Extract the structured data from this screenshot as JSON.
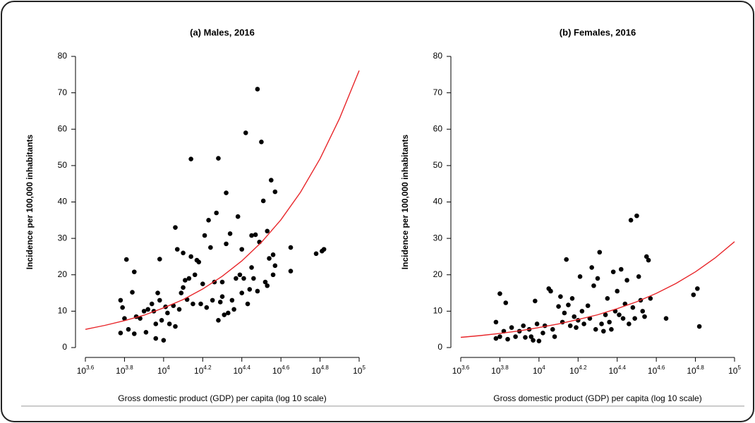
{
  "chart_data": [
    {
      "type": "scatter",
      "title": "(a) Males, 2016",
      "x_label": "Gross domestic product (GDP) per capita (log 10 scale)",
      "y_label": "Incidence per 100,000 inhabitants",
      "xlim": [
        3.6,
        5.0
      ],
      "ylim": [
        0,
        80
      ],
      "xticks": [
        {
          "value": 3.6,
          "label": "10^3.6"
        },
        {
          "value": 3.8,
          "label": "10^3.8"
        },
        {
          "value": 4.0,
          "label": "10^4"
        },
        {
          "value": 4.2,
          "label": "10^4.2"
        },
        {
          "value": 4.4,
          "label": "10^4.4"
        },
        {
          "value": 4.6,
          "label": "10^4.6"
        },
        {
          "value": 4.8,
          "label": "10^4.8"
        },
        {
          "value": 5.0,
          "label": "10^5"
        }
      ],
      "yticks": [
        0,
        10,
        20,
        30,
        40,
        50,
        60,
        70,
        80
      ],
      "series": [
        {
          "kind": "points",
          "color": "#000000",
          "x": [
            3.78,
            3.78,
            3.79,
            3.8,
            3.81,
            3.82,
            3.84,
            3.85,
            3.85,
            3.86,
            3.88,
            3.9,
            3.91,
            3.92,
            3.94,
            3.95,
            3.96,
            3.96,
            3.97,
            3.98,
            3.98,
            3.99,
            4.0,
            4.01,
            4.02,
            4.03,
            4.05,
            4.06,
            4.06,
            4.07,
            4.08,
            4.09,
            4.1,
            4.1,
            4.11,
            4.12,
            4.13,
            4.14,
            4.14,
            4.15,
            4.16,
            4.17,
            4.18,
            4.19,
            4.2,
            4.21,
            4.22,
            4.23,
            4.24,
            4.25,
            4.26,
            4.27,
            4.28,
            4.28,
            4.29,
            4.3,
            4.3,
            4.31,
            4.32,
            4.32,
            4.33,
            4.34,
            4.35,
            4.36,
            4.37,
            4.38,
            4.39,
            4.4,
            4.4,
            4.41,
            4.42,
            4.43,
            4.44,
            4.45,
            4.45,
            4.46,
            4.47,
            4.48,
            4.48,
            4.49,
            4.5,
            4.51,
            4.52,
            4.53,
            4.53,
            4.54,
            4.55,
            4.56,
            4.56,
            4.57,
            4.57,
            4.65,
            4.65,
            4.78,
            4.81,
            4.82
          ],
          "values": [
            4,
            13,
            11,
            8,
            24.2,
            5,
            15.2,
            20.8,
            3.8,
            8.5,
            8,
            10,
            4.2,
            10.5,
            12,
            10,
            6.5,
            2.5,
            15,
            13,
            24.3,
            7.5,
            2,
            11.2,
            9.5,
            6.5,
            11.5,
            5.8,
            33,
            27,
            10.5,
            15,
            16.5,
            26,
            18.5,
            13.2,
            19,
            51.8,
            25,
            12,
            20,
            24,
            23.5,
            12,
            17.5,
            30.8,
            11,
            35,
            27.5,
            13,
            18,
            37,
            52,
            7.5,
            12.5,
            14,
            18,
            9,
            42.5,
            28.5,
            9.5,
            31.3,
            13,
            10.5,
            19,
            36,
            20,
            27,
            15,
            19,
            59,
            12,
            16,
            30.8,
            22,
            19,
            31,
            71,
            15.5,
            29,
            56.5,
            40.3,
            18,
            32,
            17,
            24.5,
            46,
            25.5,
            20,
            42.8,
            22.5,
            27.5,
            21,
            25.8,
            26.5,
            27
          ]
        },
        {
          "kind": "line",
          "color": "#e8262a",
          "x": [
            3.6,
            3.7,
            3.8,
            3.9,
            4.0,
            4.1,
            4.2,
            4.3,
            4.4,
            4.5,
            4.6,
            4.7,
            4.8,
            4.9,
            5.0
          ],
          "values": [
            5.0,
            6.1,
            7.4,
            8.9,
            10.9,
            13.2,
            16.1,
            19.6,
            23.8,
            28.9,
            35.1,
            42.7,
            51.9,
            63.0,
            76.1
          ]
        }
      ]
    },
    {
      "type": "scatter",
      "title": "(b) Females, 2016",
      "x_label": "Gross domestic product (GDP) per capita (log 10 scale)",
      "y_label": "Incidence per 100,000 inhabitants",
      "xlim": [
        3.6,
        5.0
      ],
      "ylim": [
        0,
        80
      ],
      "xticks": [
        {
          "value": 3.6,
          "label": "10^3.6"
        },
        {
          "value": 3.8,
          "label": "10^3.8"
        },
        {
          "value": 4.0,
          "label": "10^4"
        },
        {
          "value": 4.2,
          "label": "10^4.2"
        },
        {
          "value": 4.4,
          "label": "10^4.4"
        },
        {
          "value": 4.6,
          "label": "10^4.6"
        },
        {
          "value": 4.8,
          "label": "10^4.8"
        },
        {
          "value": 5.0,
          "label": "10^5"
        }
      ],
      "yticks": [
        0,
        10,
        20,
        30,
        40,
        50,
        60,
        70,
        80
      ],
      "series": [
        {
          "kind": "points",
          "color": "#000000",
          "x": [
            3.78,
            3.78,
            3.8,
            3.8,
            3.82,
            3.83,
            3.84,
            3.86,
            3.88,
            3.9,
            3.92,
            3.93,
            3.95,
            3.96,
            3.97,
            3.98,
            3.99,
            4.0,
            4.02,
            4.03,
            4.05,
            4.06,
            4.07,
            4.08,
            4.1,
            4.11,
            4.12,
            4.13,
            4.14,
            4.15,
            4.16,
            4.17,
            4.18,
            4.19,
            4.2,
            4.21,
            4.22,
            4.23,
            4.25,
            4.26,
            4.27,
            4.28,
            4.29,
            4.3,
            4.31,
            4.32,
            4.33,
            4.34,
            4.35,
            4.36,
            4.37,
            4.38,
            4.39,
            4.4,
            4.41,
            4.42,
            4.43,
            4.44,
            4.45,
            4.46,
            4.47,
            4.48,
            4.49,
            4.5,
            4.51,
            4.52,
            4.53,
            4.54,
            4.55,
            4.56,
            4.57,
            4.65,
            4.79,
            4.81,
            4.82
          ],
          "values": [
            2.5,
            7,
            14.8,
            3,
            4.5,
            12.3,
            2.3,
            5.5,
            3,
            4.5,
            6,
            2.8,
            5,
            3,
            2,
            12.8,
            6.5,
            1.8,
            4,
            6,
            16.2,
            15.5,
            5,
            3,
            11.3,
            14,
            7,
            9.5,
            24.2,
            11.7,
            6,
            13.5,
            8.5,
            5.5,
            7.5,
            19.5,
            10,
            6.5,
            11.5,
            8,
            22,
            17,
            5,
            19,
            26.2,
            6.5,
            4.5,
            9,
            13.5,
            7,
            5,
            20.8,
            10,
            15.5,
            9,
            21.5,
            8,
            12,
            18.5,
            6.5,
            35,
            11,
            8,
            36.2,
            19.5,
            13,
            10,
            8.5,
            25,
            24,
            13.5,
            8,
            14.5,
            16.2,
            5.8
          ]
        },
        {
          "kind": "line",
          "color": "#e8262a",
          "x": [
            3.6,
            3.7,
            3.8,
            3.9,
            4.0,
            4.1,
            4.2,
            4.3,
            4.4,
            4.5,
            4.6,
            4.7,
            4.8,
            4.9,
            5.0
          ],
          "values": [
            2.8,
            3.3,
            3.9,
            4.6,
            5.5,
            6.5,
            7.7,
            9.0,
            10.7,
            12.6,
            14.9,
            17.6,
            20.8,
            24.6,
            29.1
          ]
        }
      ]
    }
  ]
}
